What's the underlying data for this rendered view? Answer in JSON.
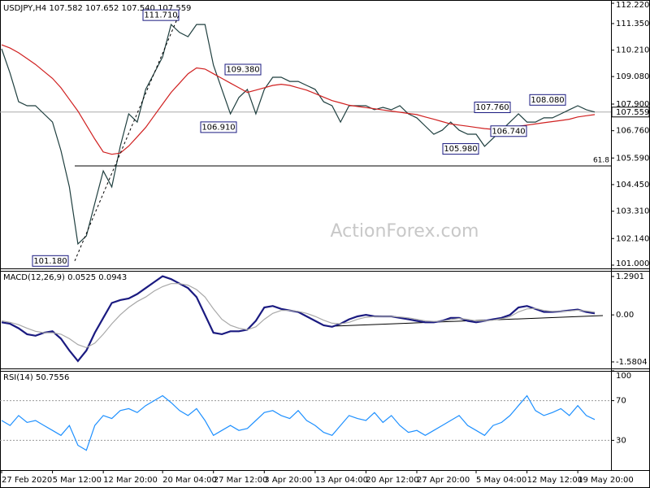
{
  "watermark": "ActionForex.com",
  "chart_data": [
    {
      "type": "line",
      "title": "USDJPY,H4 107.582 107.652 107.540 107.559",
      "categories": [
        "27 Feb 2020",
        null,
        null,
        null,
        null,
        null,
        "5 Mar 12:00",
        null,
        null,
        null,
        null,
        null,
        "12 Mar 20:00",
        null,
        null,
        null,
        null,
        null,
        null,
        "20 Mar 04:00",
        null,
        null,
        null,
        null,
        null,
        "27 Mar 12:00",
        null,
        null,
        null,
        null,
        null,
        "3 Apr 20:00",
        null,
        null,
        null,
        null,
        null,
        "13 Apr 04:00",
        null,
        null,
        null,
        null,
        null,
        "20 Apr 12:00",
        null,
        null,
        null,
        null,
        null,
        "27 Apr 20:00",
        null,
        null,
        null,
        null,
        null,
        null,
        "5 May 04:00",
        null,
        null,
        null,
        null,
        null,
        "12 May 12:00",
        null,
        null,
        null,
        null,
        null,
        "19 May 20:00",
        null,
        null
      ],
      "series": [
        {
          "name": "USDJPY",
          "color": "#1f3f3f",
          "values": [
            110.27,
            109.22,
            108.0,
            107.83,
            107.83,
            107.48,
            107.13,
            105.91,
            104.35,
            101.91,
            102.25,
            103.65,
            105.04,
            104.35,
            106.09,
            107.48,
            107.13,
            108.53,
            109.22,
            109.92,
            111.31,
            110.97,
            110.79,
            111.31,
            111.31,
            109.57,
            108.53,
            107.48,
            108.18,
            108.53,
            107.48,
            108.53,
            109.05,
            109.05,
            108.87,
            108.87,
            108.7,
            108.53,
            108.0,
            107.83,
            107.13,
            107.83,
            107.83,
            107.83,
            107.66,
            107.76,
            107.66,
            107.83,
            107.48,
            107.31,
            106.96,
            106.61,
            106.78,
            107.13,
            106.78,
            106.61,
            106.61,
            106.09,
            106.44,
            106.78,
            107.13,
            107.48,
            107.13,
            107.13,
            107.31,
            107.31,
            107.48,
            107.66,
            107.83,
            107.66,
            107.56
          ]
        },
        {
          "name": "MA",
          "color": "#d02020",
          "values": [
            110.44,
            110.3,
            110.1,
            109.85,
            109.6,
            109.3,
            109.0,
            108.6,
            108.1,
            107.6,
            107.0,
            106.4,
            105.85,
            105.75,
            105.8,
            106.1,
            106.5,
            106.9,
            107.4,
            107.9,
            108.4,
            108.8,
            109.2,
            109.45,
            109.4,
            109.2,
            109.0,
            108.8,
            108.6,
            108.4,
            108.5,
            108.6,
            108.7,
            108.75,
            108.7,
            108.6,
            108.5,
            108.35,
            108.2,
            108.05,
            107.95,
            107.85,
            107.8,
            107.75,
            107.7,
            107.65,
            107.6,
            107.55,
            107.5,
            107.45,
            107.35,
            107.25,
            107.15,
            107.05,
            107.0,
            106.95,
            106.9,
            106.85,
            106.82,
            106.85,
            106.9,
            106.95,
            107.0,
            107.05,
            107.1,
            107.15,
            107.2,
            107.25,
            107.35,
            107.4,
            107.45
          ]
        }
      ],
      "ylim": [
        100.86,
        112.36
      ],
      "yticks": [
        {
          "value": 112.22,
          "label": "112.220"
        },
        {
          "value": 111.35,
          "label": "111.350"
        },
        {
          "value": 110.21,
          "label": "110.210"
        },
        {
          "value": 109.08,
          "label": "109.080"
        },
        {
          "value": 107.9,
          "label": "107.900"
        },
        {
          "value": 106.76,
          "label": "106.760"
        },
        {
          "value": 105.59,
          "label": "105.590"
        },
        {
          "value": 104.45,
          "label": "104.450"
        },
        {
          "value": 103.31,
          "label": "103.310"
        },
        {
          "value": 102.14,
          "label": "102.140"
        },
        {
          "value": 101.0,
          "label": "101.000"
        }
      ],
      "last_price": 107.559,
      "fib_line": {
        "value": 105.25,
        "label": "61.8"
      },
      "annotations": [
        {
          "value": 111.71,
          "label": "111.710"
        },
        {
          "value": 109.38,
          "label": "109.380"
        },
        {
          "value": 106.91,
          "label": "106.910"
        },
        {
          "value": 101.18,
          "label": "101.180"
        },
        {
          "value": 107.76,
          "label": "107.760"
        },
        {
          "value": 108.08,
          "label": "108.080"
        },
        {
          "value": 106.74,
          "label": "106.740"
        },
        {
          "value": 105.98,
          "label": "105.980"
        }
      ]
    },
    {
      "type": "line",
      "title": "MACD(12,26,9) 0.0525 0.0943",
      "series": [
        {
          "name": "MACD",
          "color": "#1a1a80",
          "values": [
            -0.25,
            -0.3,
            -0.45,
            -0.65,
            -0.7,
            -0.6,
            -0.55,
            -0.8,
            -1.2,
            -1.55,
            -1.2,
            -0.6,
            -0.1,
            0.4,
            0.5,
            0.55,
            0.7,
            0.9,
            1.1,
            1.3,
            1.2,
            1.05,
            0.9,
            0.6,
            0.0,
            -0.6,
            -0.65,
            -0.55,
            -0.55,
            -0.5,
            -0.2,
            0.25,
            0.3,
            0.2,
            0.15,
            0.1,
            -0.05,
            -0.2,
            -0.35,
            -0.4,
            -0.3,
            -0.15,
            -0.05,
            0.0,
            -0.05,
            -0.05,
            -0.05,
            -0.1,
            -0.15,
            -0.2,
            -0.25,
            -0.25,
            -0.2,
            -0.1,
            -0.1,
            -0.2,
            -0.25,
            -0.2,
            -0.15,
            -0.1,
            0.0,
            0.25,
            0.3,
            0.2,
            0.1,
            0.1,
            0.12,
            0.15,
            0.18,
            0.1,
            0.05
          ]
        },
        {
          "name": "Signal",
          "color": "#a8a8a8",
          "values": [
            -0.2,
            -0.25,
            -0.33,
            -0.45,
            -0.55,
            -0.6,
            -0.6,
            -0.65,
            -0.8,
            -1.0,
            -1.1,
            -0.95,
            -0.65,
            -0.3,
            0.0,
            0.25,
            0.45,
            0.6,
            0.8,
            0.95,
            1.05,
            1.05,
            1.0,
            0.85,
            0.6,
            0.2,
            -0.15,
            -0.35,
            -0.45,
            -0.5,
            -0.4,
            -0.15,
            0.05,
            0.15,
            0.15,
            0.12,
            0.05,
            -0.05,
            -0.18,
            -0.28,
            -0.3,
            -0.25,
            -0.15,
            -0.08,
            -0.06,
            -0.05,
            -0.05,
            -0.07,
            -0.1,
            -0.15,
            -0.2,
            -0.22,
            -0.21,
            -0.16,
            -0.12,
            -0.15,
            -0.2,
            -0.2,
            -0.18,
            -0.13,
            -0.06,
            0.1,
            0.2,
            0.22,
            0.15,
            0.12,
            0.12,
            0.13,
            0.16,
            0.13,
            0.09
          ]
        }
      ],
      "ylim": [
        -1.8,
        1.48
      ],
      "yticks": [
        1.2901,
        {
          "value": 0,
          "label": "0.00"
        },
        -1.5804
      ]
    },
    {
      "type": "line",
      "title": "RSI(14) 50.7556",
      "series": [
        {
          "name": "RSI",
          "color": "#1e90ff",
          "values": [
            50,
            45,
            55,
            48,
            50,
            45,
            40,
            35,
            45,
            25,
            20,
            45,
            55,
            52,
            60,
            62,
            58,
            65,
            70,
            75,
            68,
            60,
            55,
            62,
            50,
            35,
            40,
            45,
            40,
            42,
            50,
            58,
            60,
            55,
            52,
            60,
            50,
            45,
            38,
            35,
            45,
            55,
            52,
            50,
            58,
            48,
            55,
            45,
            38,
            40,
            35,
            40,
            45,
            50,
            55,
            45,
            40,
            35,
            45,
            48,
            55,
            65,
            75,
            60,
            55,
            58,
            62,
            55,
            65,
            55,
            51
          ]
        }
      ],
      "ylim": [
        0,
        100
      ],
      "yticks": [
        100,
        70,
        30
      ],
      "levels": [
        70,
        30
      ]
    }
  ]
}
